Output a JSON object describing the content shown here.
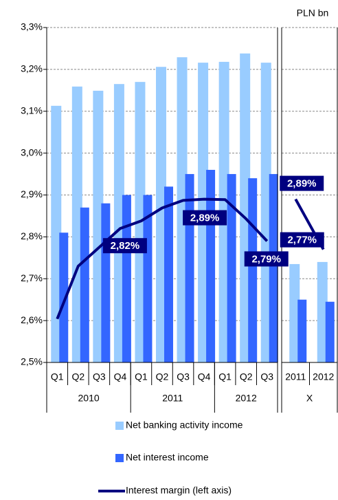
{
  "chart_data": {
    "type": "bar-line",
    "unit_label": "PLN bn",
    "categories": [
      "Q1",
      "Q2",
      "Q3",
      "Q4",
      "Q1",
      "Q2",
      "Q3",
      "Q4",
      "Q1",
      "Q2",
      "Q3",
      "2011",
      "2012"
    ],
    "groups": [
      {
        "label": "2010",
        "span": 4,
        "panel": 0
      },
      {
        "label": "2011",
        "span": 4,
        "panel": 0
      },
      {
        "label": "2012",
        "span": 3,
        "panel": 0
      },
      {
        "label": "X",
        "span": 2,
        "panel": 1
      }
    ],
    "series": [
      {
        "name": "Net banking activity income",
        "kind": "bar",
        "color": "#99ccff",
        "values": [
          3.113,
          3.159,
          3.149,
          3.165,
          3.17,
          3.206,
          3.229,
          3.216,
          3.218,
          3.238,
          3.216,
          2.735,
          2.74
        ]
      },
      {
        "name": "Net interest income",
        "kind": "bar",
        "color": "#3366ff",
        "values": [
          2.81,
          2.87,
          2.88,
          2.9,
          2.9,
          2.92,
          2.95,
          2.96,
          2.95,
          2.94,
          2.95,
          2.65,
          2.645
        ]
      },
      {
        "name": "Interest margin (left axis)",
        "kind": "line",
        "color": "#000080",
        "values": [
          2.604,
          2.73,
          2.775,
          2.82,
          2.838,
          2.869,
          2.887,
          2.89,
          2.889,
          2.843,
          2.79,
          2.89,
          2.77
        ],
        "value_labels": [
          null,
          null,
          null,
          "2,82%",
          null,
          null,
          null,
          "2,89%",
          null,
          null,
          "2,79%",
          "2,89%",
          "2,77%"
        ]
      }
    ],
    "ylim": [
      2.5,
      3.3
    ],
    "yticks": [
      {
        "value": 2.5,
        "label": "2,5%"
      },
      {
        "value": 2.6,
        "label": "2,6%"
      },
      {
        "value": 2.7,
        "label": "2,7%"
      },
      {
        "value": 2.8,
        "label": "2,8%"
      },
      {
        "value": 2.9,
        "label": "2,9%"
      },
      {
        "value": 3.0,
        "label": "3,0%"
      },
      {
        "value": 3.1,
        "label": "3,1%"
      },
      {
        "value": 3.2,
        "label": "3,2%"
      },
      {
        "value": 3.3,
        "label": "3,3%"
      }
    ],
    "grid": true
  }
}
